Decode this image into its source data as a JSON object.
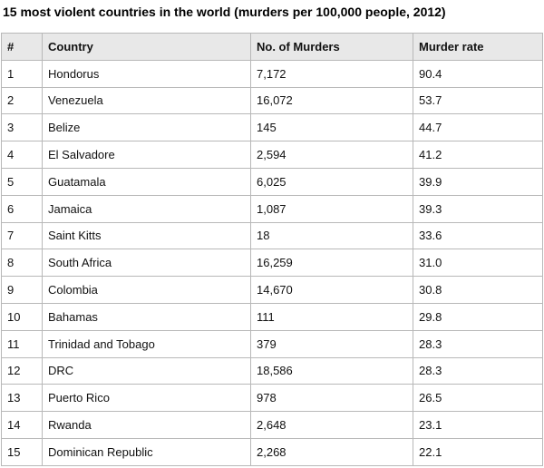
{
  "title": "15 most violent countries in the world (murders per 100,000 people, 2012)",
  "table": {
    "headers": [
      "#",
      "Country",
      "No. of Murders",
      "Murder rate"
    ],
    "rows": [
      [
        "1",
        "Hondorus",
        "7,172",
        "90.4"
      ],
      [
        "2",
        "Venezuela",
        "16,072",
        "53.7"
      ],
      [
        "3",
        "Belize",
        "145",
        "44.7"
      ],
      [
        "4",
        "El Salvadore",
        "2,594",
        "41.2"
      ],
      [
        "5",
        "Guatamala",
        "6,025",
        "39.9"
      ],
      [
        "6",
        "Jamaica",
        "1,087",
        "39.3"
      ],
      [
        "7",
        "Saint Kitts",
        "18",
        "33.6"
      ],
      [
        "8",
        "South Africa",
        "16,259",
        "31.0"
      ],
      [
        "9",
        "Colombia",
        "14,670",
        "30.8"
      ],
      [
        "10",
        "Bahamas",
        "111",
        "29.8"
      ],
      [
        "11",
        "Trinidad and Tobago",
        "379",
        "28.3"
      ],
      [
        "12",
        "DRC",
        "18,586",
        "28.3"
      ],
      [
        "13",
        "Puerto Rico",
        "978",
        "26.5"
      ],
      [
        "14",
        "Rwanda",
        "2,648",
        "23.1"
      ],
      [
        "15",
        "Dominican Republic",
        "2,268",
        "22.1"
      ]
    ]
  }
}
